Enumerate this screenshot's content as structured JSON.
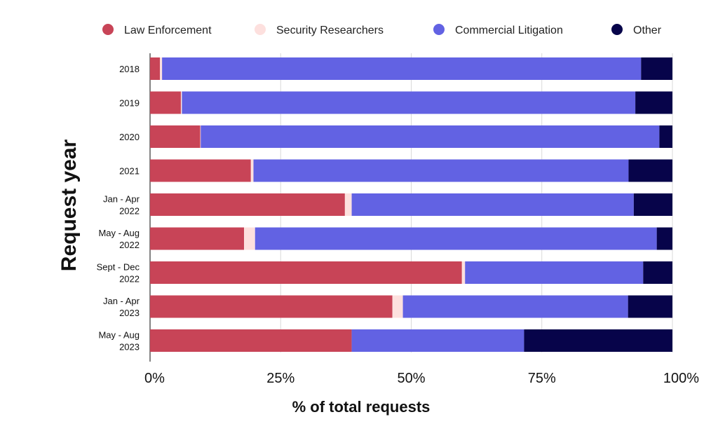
{
  "chart_data": {
    "type": "bar",
    "orientation": "horizontal",
    "stacked": true,
    "normalized": true,
    "xlabel": "% of total requests",
    "ylabel": "Request year",
    "xlim": [
      0,
      100
    ],
    "x_ticks": [
      "0%",
      "25%",
      "50%",
      "75%",
      "100%"
    ],
    "x_tick_values": [
      0,
      25,
      50,
      75,
      100
    ],
    "grid": "vertical",
    "legend_position": "top",
    "categories": [
      [
        "2018"
      ],
      [
        "2019"
      ],
      [
        "2020"
      ],
      [
        "2021"
      ],
      [
        "Jan - Apr",
        "2022"
      ],
      [
        "May - Aug",
        "2022"
      ],
      [
        "Sept - Dec",
        "2022"
      ],
      [
        "Jan - Apr",
        "2023"
      ],
      [
        "May - Aug",
        "2023"
      ]
    ],
    "series": [
      {
        "name": "Law Enforcement",
        "color": "#C84457",
        "values": [
          1.9,
          5.9,
          9.6,
          19.3,
          37.3,
          18.0,
          59.7,
          46.4,
          38.6
        ]
      },
      {
        "name": "Security Researchers",
        "color": "#FDE0DE",
        "values": [
          0.4,
          0.2,
          0.1,
          0.5,
          1.3,
          2.1,
          0.6,
          2.0,
          0.0
        ]
      },
      {
        "name": "Commercial Litigation",
        "color": "#6262E3",
        "values": [
          91.7,
          86.8,
          87.8,
          71.8,
          54.0,
          76.9,
          34.1,
          43.1,
          33.0
        ]
      },
      {
        "name": "Other",
        "color": "#07044A",
        "values": [
          6.0,
          7.1,
          2.5,
          8.4,
          7.4,
          3.0,
          5.6,
          8.5,
          28.4
        ]
      }
    ]
  }
}
